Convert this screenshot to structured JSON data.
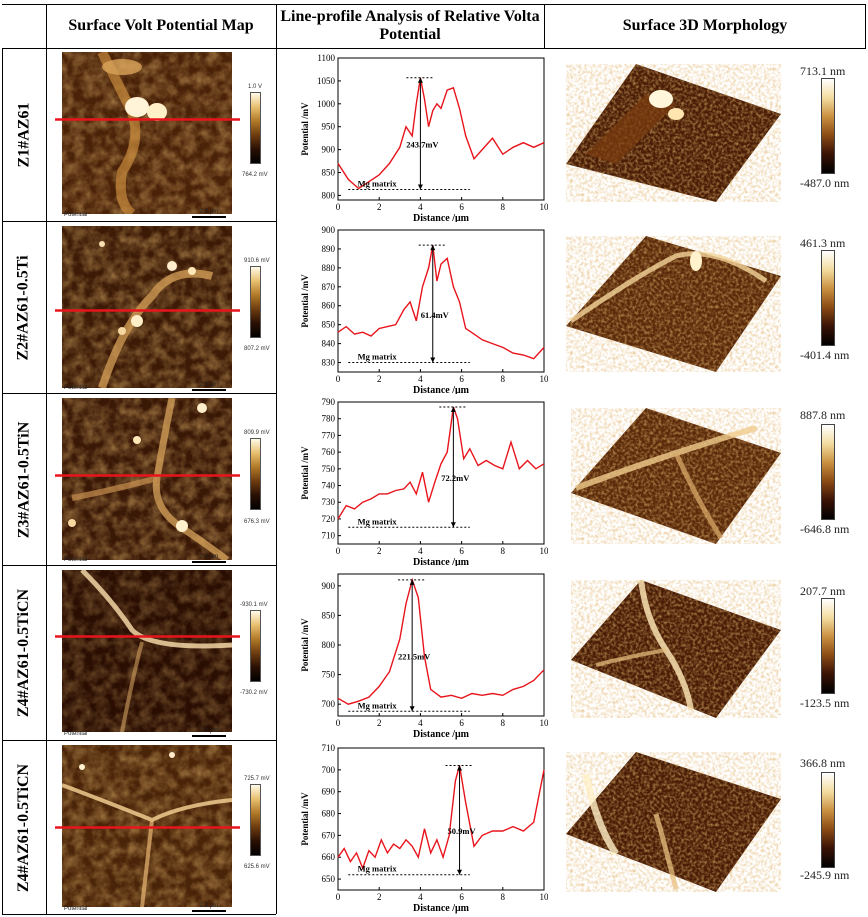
{
  "headers": {
    "col1": "Surface Volt Potential Map",
    "col2": "Line-profile Analysis of Relative Volta Potential",
    "col3": "Surface 3D Morphology"
  },
  "map_caption": "Potential",
  "map_scale": "2.0 μm",
  "rows": [
    {
      "label": "Z1#AZ61",
      "map_max": "1.0 V",
      "map_min": "764.2 mV",
      "morph_max": "713.1 nm",
      "morph_min": "-487.0 nm"
    },
    {
      "label": "Z2#AZ61-0.5Ti",
      "map_max": "910.6 mV",
      "map_min": "807.2 mV",
      "morph_max": "461.3 nm",
      "morph_min": "-401.4 nm"
    },
    {
      "label": "Z3#AZ61-0.5TiN",
      "map_max": "809.9 mV",
      "map_min": "676.3 mV",
      "morph_max": "887.8 nm",
      "morph_min": "-646.8 nm"
    },
    {
      "label": "Z4#AZ61-0.5TiCN",
      "map_max": "-930.1 mV",
      "map_min": "-730.2 mV",
      "morph_max": "207.7 nm",
      "morph_min": "-123.5 nm"
    },
    {
      "label": "Z4#AZ61-0.5TiCN",
      "map_max": "725.7 mV",
      "map_min": "625.6 mV",
      "morph_max": "366.8 nm",
      "morph_min": "-245.9 nm"
    }
  ],
  "colors": {
    "profile": "#e8141c",
    "afm_dark": "#1a0600",
    "afm_light": "#ffe9a8"
  },
  "chart_data": [
    {
      "type": "line",
      "xlabel": "Distance /μm",
      "ylabel": "Potential /mV",
      "xlim": [
        0,
        10
      ],
      "ylim": [
        790,
        1100
      ],
      "xticks": [
        0,
        2,
        4,
        6,
        8,
        10
      ],
      "yticks": [
        800,
        850,
        900,
        950,
        1000,
        1050,
        1100
      ],
      "x": [
        0,
        0.5,
        1,
        1.5,
        2,
        2.5,
        3,
        3.3,
        3.6,
        3.8,
        4.0,
        4.2,
        4.4,
        4.6,
        4.8,
        5.0,
        5.3,
        5.6,
        5.9,
        6.2,
        6.6,
        7,
        7.5,
        8,
        8.5,
        9,
        9.5,
        10
      ],
      "values": [
        870,
        835,
        815,
        830,
        845,
        870,
        905,
        950,
        930,
        1000,
        1057,
        1010,
        950,
        985,
        1000,
        990,
        1030,
        1035,
        990,
        930,
        880,
        900,
        925,
        890,
        905,
        915,
        905,
        915
      ],
      "annotation": "243.7mV",
      "matrix_label": "Mg matrix",
      "peak": [
        4.0,
        1057
      ],
      "base": 813
    },
    {
      "type": "line",
      "xlabel": "Distance /μm",
      "ylabel": "Potential /mV",
      "xlim": [
        0,
        10
      ],
      "ylim": [
        825,
        900
      ],
      "xticks": [
        0,
        2,
        4,
        6,
        8,
        10
      ],
      "yticks": [
        830,
        840,
        850,
        860,
        870,
        880,
        890,
        900
      ],
      "x": [
        0,
        0.4,
        0.8,
        1.2,
        1.6,
        2,
        2.4,
        2.8,
        3.2,
        3.5,
        3.8,
        4.1,
        4.4,
        4.6,
        4.8,
        5.0,
        5.3,
        5.6,
        5.9,
        6.2,
        6.6,
        7,
        7.5,
        8,
        8.5,
        9,
        9.5,
        10
      ],
      "values": [
        846,
        849,
        845,
        846,
        844,
        848,
        849,
        850,
        858,
        862,
        852,
        870,
        880,
        892,
        873,
        882,
        885,
        870,
        862,
        848,
        845,
        842,
        840,
        838,
        835,
        834,
        832,
        838
      ],
      "annotation": "61.4mV",
      "matrix_label": "Mg matrix",
      "peak": [
        4.6,
        892
      ],
      "base": 830
    },
    {
      "type": "line",
      "xlabel": "Distance /μm",
      "ylabel": "Potential /mV",
      "xlim": [
        0,
        10
      ],
      "ylim": [
        705,
        790
      ],
      "xticks": [
        0,
        2,
        4,
        6,
        8,
        10
      ],
      "yticks": [
        710,
        720,
        730,
        740,
        750,
        760,
        770,
        780,
        790
      ],
      "x": [
        0,
        0.4,
        0.8,
        1.2,
        1.6,
        2,
        2.4,
        2.8,
        3.2,
        3.5,
        3.8,
        4.1,
        4.4,
        4.7,
        5.0,
        5.3,
        5.6,
        5.8,
        6.1,
        6.4,
        6.8,
        7.2,
        7.6,
        8,
        8.4,
        8.8,
        9.2,
        9.6,
        10
      ],
      "values": [
        720,
        728,
        726,
        730,
        732,
        735,
        735,
        737,
        738,
        742,
        735,
        748,
        730,
        742,
        753,
        760,
        787,
        780,
        756,
        762,
        752,
        755,
        752,
        750,
        766,
        750,
        755,
        750,
        753
      ],
      "annotation": "72.2mV",
      "matrix_label": "Mg matrix",
      "peak": [
        5.6,
        787
      ],
      "base": 715
    },
    {
      "type": "line",
      "xlabel": "Distance /μm",
      "ylabel": "Potential /mV",
      "xlim": [
        0,
        10
      ],
      "ylim": [
        680,
        920
      ],
      "xticks": [
        0,
        2,
        4,
        6,
        8,
        10
      ],
      "yticks": [
        700,
        750,
        800,
        850,
        900
      ],
      "x": [
        0,
        0.5,
        1,
        1.5,
        2,
        2.5,
        3,
        3.3,
        3.6,
        3.9,
        4.2,
        4.5,
        5,
        5.5,
        6,
        6.5,
        7,
        7.5,
        8,
        8.5,
        9,
        9.5,
        10
      ],
      "values": [
        710,
        700,
        705,
        712,
        730,
        755,
        810,
        870,
        910,
        880,
        780,
        725,
        712,
        715,
        710,
        718,
        715,
        718,
        715,
        725,
        730,
        740,
        758
      ],
      "annotation": "221.5mV",
      "matrix_label": "Mg matrix",
      "peak": [
        3.6,
        910
      ],
      "base": 688
    },
    {
      "type": "line",
      "xlabel": "Distance /μm",
      "ylabel": "Potential /mV",
      "xlim": [
        0,
        10
      ],
      "ylim": [
        645,
        710
      ],
      "xticks": [
        0,
        2,
        4,
        6,
        8,
        10
      ],
      "yticks": [
        650,
        660,
        670,
        680,
        690,
        700,
        710
      ],
      "x": [
        0,
        0.3,
        0.6,
        0.9,
        1.2,
        1.5,
        1.8,
        2.1,
        2.4,
        2.7,
        3,
        3.3,
        3.6,
        3.9,
        4.2,
        4.5,
        4.8,
        5.1,
        5.4,
        5.7,
        5.9,
        6.2,
        6.6,
        7,
        7.5,
        8,
        8.5,
        9,
        9.5,
        10
      ],
      "values": [
        660,
        664,
        658,
        662,
        655,
        663,
        660,
        668,
        662,
        666,
        664,
        668,
        665,
        660,
        673,
        662,
        668,
        660,
        670,
        695,
        702,
        685,
        665,
        670,
        672,
        672,
        674,
        672,
        676,
        700
      ],
      "annotation": "50.9mV",
      "matrix_label": "Mg matrix",
      "peak": [
        5.9,
        702
      ],
      "base": 652
    }
  ]
}
